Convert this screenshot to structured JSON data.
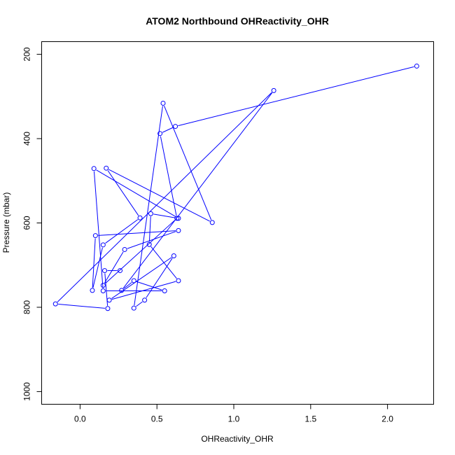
{
  "chart_data": {
    "type": "line",
    "title": "ATOM2 Northbound OHReactivity_OHR",
    "xlabel": "OHReactivity_OHR",
    "ylabel": "Pressure (mbar)",
    "xlim": [
      -0.25,
      2.3
    ],
    "ylim": [
      1030,
      170
    ],
    "y_axis_reversed": true,
    "xticks": [
      0.0,
      0.5,
      1.0,
      1.5,
      2.0
    ],
    "xtick_labels": [
      "0.0",
      "0.5",
      "1.0",
      "1.5",
      "2.0"
    ],
    "yticks": [
      200,
      400,
      600,
      800,
      1000
    ],
    "ytick_labels": [
      "200",
      "400",
      "600",
      "800",
      "1000"
    ],
    "grid": false,
    "series": [
      {
        "name": "OHReactivity_OHR",
        "color": "#0000ff",
        "marker": "open-circle",
        "x": [
          2.19,
          0.62,
          0.52,
          0.63,
          0.15,
          0.29,
          0.64,
          0.1,
          0.08,
          0.15,
          0.39,
          0.17,
          0.86,
          0.54,
          0.35,
          0.42,
          0.61,
          0.19,
          0.64,
          0.45,
          0.46,
          0.64,
          0.09,
          0.15,
          0.55,
          0.35,
          0.27,
          1.26,
          -0.16,
          0.18,
          0.16,
          0.26
        ],
        "y": [
          228,
          371,
          388,
          589,
          748,
          663,
          618,
          630,
          760,
          652,
          588,
          470,
          599,
          316,
          802,
          783,
          678,
          783,
          737,
          651,
          578,
          589,
          471,
          761,
          761,
          737,
          760,
          286,
          792,
          803,
          713,
          713
        ]
      }
    ]
  }
}
